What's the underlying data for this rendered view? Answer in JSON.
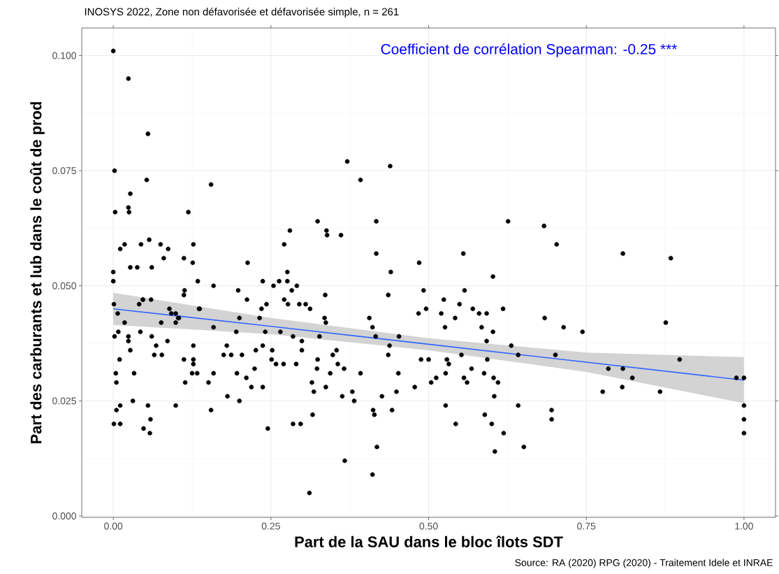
{
  "chart_data": {
    "type": "scatter",
    "title": "INOSYS 2022, Zone non défavorisée et défavorisée simple, n = 261",
    "xlabel": "Part de la SAU dans le bloc îlots SDT",
    "ylabel": "Part des carburants et lub dans le coût de prod",
    "annotations": [
      "Coefficient de corrélation Spearman: -0.25 ***",
      "Source: RA (2020) RPG (2020) - Traitement Idele et INRAE"
    ],
    "xlim": [
      -0.05,
      1.05
    ],
    "ylim": [
      -0.0003,
      0.106
    ],
    "xticks": [
      {
        "value": 0,
        "label": "0.00"
      },
      {
        "value": 0.25,
        "label": "0.25"
      },
      {
        "value": 0.5,
        "label": "0.50"
      },
      {
        "value": 0.75,
        "label": "0.75"
      },
      {
        "value": 1,
        "label": "1.00"
      }
    ],
    "yticks": [
      {
        "value": 0,
        "label": "0.000"
      },
      {
        "value": 0.025,
        "label": "0.025"
      },
      {
        "value": 0.05,
        "label": "0.050"
      },
      {
        "value": 0.075,
        "label": "0.075"
      },
      {
        "value": 0.1,
        "label": "0.100"
      }
    ],
    "grid": true,
    "legend": false,
    "series": [
      {
        "color": "#000000",
        "marker": "circle",
        "x": [
          0.0,
          0.024,
          0.055,
          0.002,
          0.053,
          0.027,
          0.024,
          0.025,
          0.003,
          0.155,
          0.119,
          0.057,
          0.018,
          0.011,
          0.044,
          0.075,
          0.087,
          0.08,
          0.112,
          0.126,
          0.127,
          0.027,
          0.038,
          0.061,
          0.0,
          0.213,
          0.0,
          0.134,
          0.159,
          0.06,
          0.041,
          0.047,
          0.001,
          0.007,
          0.018,
          0.089,
          0.103,
          0.113,
          0.099,
          0.092,
          0.137,
          0.002,
          0.008,
          0.024,
          0.024,
          0.043,
          0.061,
          0.027,
          0.068,
          0.086,
          0.01,
          0.065,
          0.077,
          0.112,
          0.004,
          0.033,
          0.005,
          0.114,
          0.031,
          0.055,
          0.011,
          0.005,
          0.059,
          0.001,
          0.011,
          0.048,
          0.058,
          0.099,
          0.127,
          0.127,
          0.127,
          0.125,
          0.133,
          0.151,
          0.159,
          0.155,
          0.18,
          0.175,
          0.187,
          0.204,
          0.196,
          0.211,
          0.219,
          0.237,
          0.224,
          0.226,
          0.237,
          0.252,
          0.251,
          0.258,
          0.27,
          0.29,
          0.299,
          0.299,
          0.324,
          0.323,
          0.315,
          0.318,
          0.181,
          0.2,
          0.245,
          0.285,
          0.297,
          0.316,
          0.311,
          0.112,
          0.198,
          0.212,
          0.237,
          0.254,
          0.263,
          0.276,
          0.283,
          0.291,
          0.336,
          0.235,
          0.243,
          0.271,
          0.277,
          0.295,
          0.305,
          0.312,
          0.232,
          0.335,
          0.337,
          0.136,
          0.047,
          0.2,
          0.159,
          0.195,
          0.241,
          0.265,
          0.285,
          0.327,
          0.076,
          0.099,
          0.104,
          0.324,
          0.338,
          0.339,
          0.28,
          0.271,
          0.276,
          0.371,
          0.439,
          0.392,
          0.417,
          0.361,
          0.417,
          0.44,
          0.485,
          0.555,
          0.602,
          0.626,
          0.683,
          0.703,
          0.436,
          0.492,
          0.524,
          0.557,
          0.549,
          0.57,
          0.58,
          0.592,
          0.618,
          0.484,
          0.496,
          0.52,
          0.542,
          0.526,
          0.584,
          0.602,
          0.684,
          0.714,
          0.406,
          0.411,
          0.416,
          0.453,
          0.438,
          0.436,
          0.348,
          0.354,
          0.356,
          0.366,
          0.344,
          0.337,
          0.363,
          0.379,
          0.382,
          0.392,
          0.426,
          0.412,
          0.414,
          0.442,
          0.452,
          0.449,
          0.478,
          0.418,
          0.367,
          0.411,
          0.488,
          0.5,
          0.529,
          0.532,
          0.527,
          0.504,
          0.512,
          0.552,
          0.568,
          0.556,
          0.561,
          0.592,
          0.593,
          0.588,
          0.603,
          0.61,
          0.604,
          0.527,
          0.543,
          0.589,
          0.6,
          0.619,
          0.605,
          0.651,
          0.642,
          0.631,
          0.642,
          0.695,
          0.695,
          0.701,
          0.808,
          0.884,
          0.876,
          0.744,
          0.898,
          0.785,
          0.808,
          0.823,
          0.776,
          0.807,
          0.867,
          0.988,
          1.0,
          1.0,
          1.0,
          1.0
        ],
        "values": [
          0.101,
          0.095,
          0.083,
          0.075,
          0.073,
          0.07,
          0.067,
          0.066,
          0.066,
          0.072,
          0.066,
          0.06,
          0.059,
          0.058,
          0.059,
          0.059,
          0.058,
          0.056,
          0.056,
          0.055,
          0.059,
          0.054,
          0.054,
          0.054,
          0.053,
          0.055,
          0.051,
          0.051,
          0.05,
          0.047,
          0.046,
          0.047,
          0.046,
          0.044,
          0.042,
          0.045,
          0.043,
          0.049,
          0.044,
          0.044,
          0.045,
          0.039,
          0.04,
          0.039,
          0.038,
          0.04,
          0.039,
          0.036,
          0.037,
          0.038,
          0.034,
          0.035,
          0.035,
          0.034,
          0.031,
          0.031,
          0.029,
          0.029,
          0.025,
          0.024,
          0.024,
          0.023,
          0.021,
          0.02,
          0.02,
          0.019,
          0.018,
          0.024,
          0.037,
          0.034,
          0.033,
          0.031,
          0.031,
          0.029,
          0.031,
          0.023,
          0.037,
          0.035,
          0.035,
          0.035,
          0.031,
          0.03,
          0.028,
          0.028,
          0.032,
          0.036,
          0.037,
          0.036,
          0.034,
          0.033,
          0.033,
          0.033,
          0.036,
          0.038,
          0.034,
          0.032,
          0.029,
          0.027,
          0.026,
          0.025,
          0.019,
          0.02,
          0.02,
          0.022,
          0.005,
          0.048,
          0.049,
          0.047,
          0.051,
          0.05,
          0.051,
          0.051,
          0.049,
          0.05,
          0.048,
          0.045,
          0.046,
          0.047,
          0.046,
          0.046,
          0.046,
          0.045,
          0.043,
          0.043,
          0.042,
          0.045,
          0.047,
          0.043,
          0.041,
          0.04,
          0.04,
          0.04,
          0.039,
          0.039,
          0.042,
          0.042,
          0.043,
          0.064,
          0.062,
          0.061,
          0.062,
          0.059,
          0.053,
          0.077,
          0.076,
          0.073,
          0.064,
          0.061,
          0.057,
          0.053,
          0.055,
          0.057,
          0.052,
          0.064,
          0.063,
          0.059,
          0.048,
          0.049,
          0.047,
          0.049,
          0.046,
          0.045,
          0.044,
          0.044,
          0.045,
          0.044,
          0.045,
          0.044,
          0.043,
          0.041,
          0.041,
          0.04,
          0.043,
          0.041,
          0.043,
          0.041,
          0.039,
          0.039,
          0.037,
          0.035,
          0.035,
          0.036,
          0.033,
          0.032,
          0.031,
          0.028,
          0.026,
          0.027,
          0.025,
          0.031,
          0.026,
          0.023,
          0.022,
          0.023,
          0.031,
          0.027,
          0.028,
          0.015,
          0.012,
          0.009,
          0.034,
          0.034,
          0.034,
          0.033,
          0.031,
          0.029,
          0.03,
          0.035,
          0.032,
          0.03,
          0.029,
          0.038,
          0.034,
          0.031,
          0.03,
          0.029,
          0.026,
          0.024,
          0.02,
          0.022,
          0.02,
          0.018,
          0.014,
          0.015,
          0.024,
          0.037,
          0.035,
          0.023,
          0.021,
          0.035,
          0.057,
          0.056,
          0.042,
          0.04,
          0.034,
          0.032,
          0.032,
          0.03,
          0.027,
          0.028,
          0.027,
          0.03,
          0.03,
          0.024,
          0.021,
          0.018
        ]
      },
      {
        "type": "line",
        "color": "#3366ff",
        "x": [
          0,
          0.25,
          0.5,
          0.75,
          1
        ],
        "values": [
          0.045,
          0.0412,
          0.0373,
          0.0334,
          0.0295
        ],
        "lower": [
          0.0415,
          0.0395,
          0.036,
          0.0313,
          0.0245
        ],
        "upper": [
          0.0485,
          0.043,
          0.0386,
          0.0355,
          0.0345
        ]
      }
    ]
  }
}
